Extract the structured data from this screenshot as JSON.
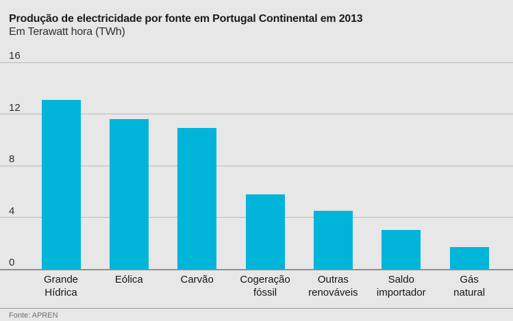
{
  "header": {
    "title": "Produção de electricidade por fonte em Portugal Continental em 2013",
    "subtitle": "Em Terawatt hora (TWh)"
  },
  "footer": {
    "source": "Fonte: APREN"
  },
  "colors": {
    "background": "#e7e7e7",
    "bar": "#00b4da",
    "gridline": "#b9b9b9",
    "baseline": "#8f8f8f",
    "title_text": "#1a1a1a",
    "tick_text": "#2e2e2e",
    "footer_text": "#6f6f6f"
  },
  "chart_data": {
    "type": "bar",
    "title": "Produção de electricidade por fonte em Portugal Continental em 2013",
    "subtitle": "Em Terawatt hora (TWh)",
    "unit": "TWh",
    "categories": [
      "Grande Hídrica",
      "Eólica",
      "Carvão",
      "Cogeração fóssil",
      "Outras renováveis",
      "Saldo importador",
      "Gás natural"
    ],
    "category_lines": [
      [
        "Grande",
        "Hídrica"
      ],
      [
        "Eólica"
      ],
      [
        "Carvão"
      ],
      [
        "Cogeração",
        "fóssil"
      ],
      [
        "Outras",
        "renováveis"
      ],
      [
        "Saldo",
        "importador"
      ],
      [
        "Gás",
        "natural"
      ]
    ],
    "values": [
      13.1,
      11.6,
      10.9,
      5.8,
      4.5,
      3.0,
      1.7
    ],
    "xlabel": "",
    "ylabel": "",
    "yticks": [
      0,
      4,
      8,
      12,
      16
    ],
    "ylim": [
      0,
      16
    ],
    "grid": true,
    "legend": false,
    "bar_color": "#00b4da",
    "source": "Fonte: APREN"
  }
}
